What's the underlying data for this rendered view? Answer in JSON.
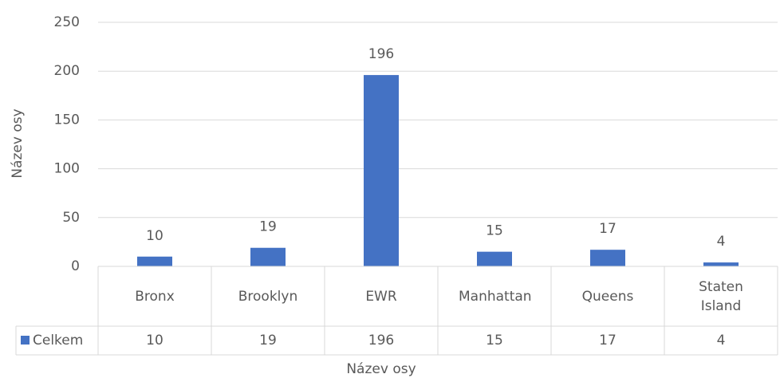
{
  "chart_data": {
    "type": "bar",
    "categories": [
      "Bronx",
      "Brooklyn",
      "EWR",
      "Manhattan",
      "Queens",
      "Staten Island"
    ],
    "series": [
      {
        "name": "Celkem",
        "color": "#4472c4",
        "values": [
          10,
          19,
          196,
          15,
          17,
          4
        ]
      }
    ],
    "ylim": [
      0,
      250
    ],
    "yticks": [
      0,
      50,
      100,
      150,
      200,
      250
    ],
    "grid": true,
    "y_label": "Název osy",
    "x_label": "Název osy",
    "data_table": true
  }
}
